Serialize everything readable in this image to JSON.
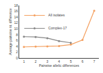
{
  "chart_data": {
    "type": "line",
    "x": [
      1,
      2,
      3,
      4,
      5,
      6,
      7
    ],
    "series": [
      {
        "name": "All isolates",
        "color": "#f4a060",
        "marker": "circle",
        "values": [
          3.8,
          3.9,
          4.0,
          4.1,
          4.6,
          6.2,
          16.2
        ]
      },
      {
        "name": "Complex-17",
        "color": "#888888",
        "marker": "circle",
        "values": [
          7.3,
          7.2,
          6.8,
          5.8,
          5.2,
          null,
          null
        ]
      }
    ],
    "xlabel": "Pairwise allelic differences",
    "ylabel": "Average pairwise nt. difference",
    "xlim": [
      0.6,
      7.4
    ],
    "ylim": [
      0,
      18
    ],
    "xticks": [
      1,
      2,
      3,
      4,
      5,
      6,
      7
    ],
    "yticks": [
      0,
      2,
      4,
      6,
      8,
      10,
      12,
      14,
      16,
      18
    ],
    "grid": false,
    "legend": "upper left"
  }
}
